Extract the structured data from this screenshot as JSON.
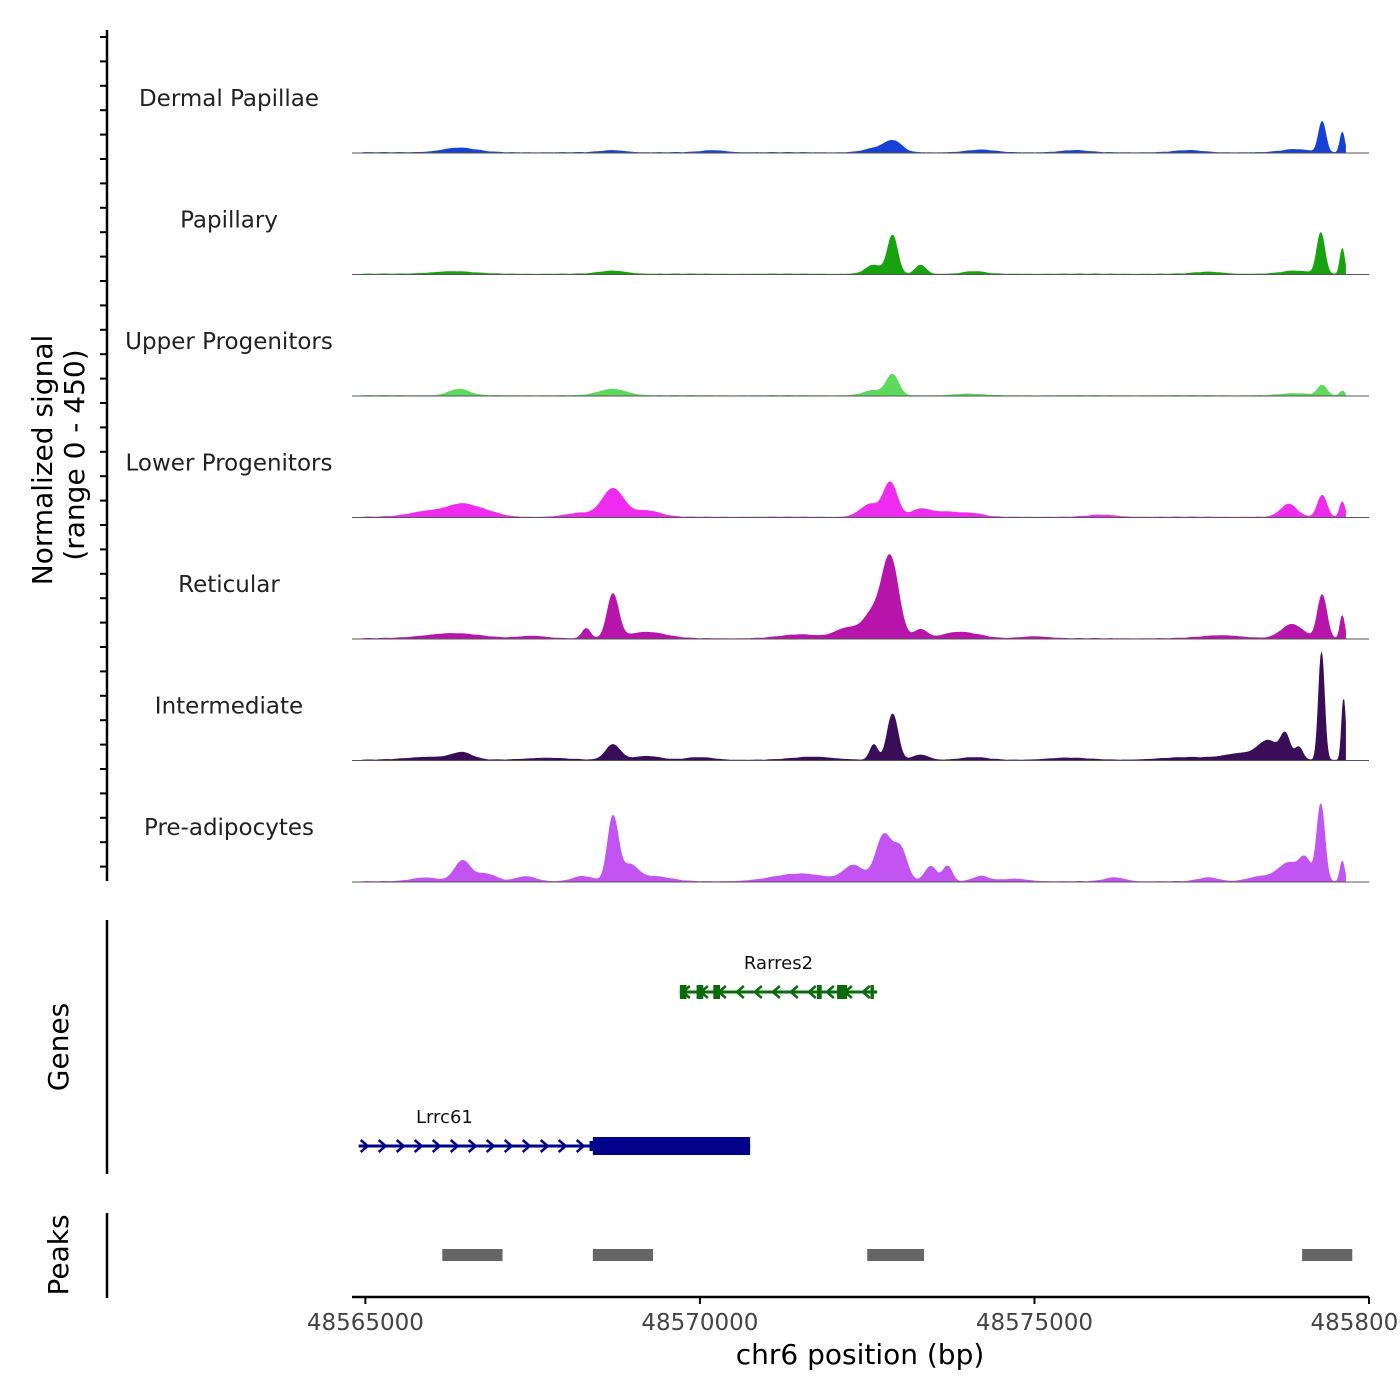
{
  "chart_data": {
    "type": "area",
    "title": "",
    "y_axis_label_line1": "Normalized signal",
    "y_axis_label_line2": "(range 0 - 450)",
    "ylim": [
      0,
      450
    ],
    "xlabel": "chr6 position (bp)",
    "xlim": [
      48564800,
      48580000
    ],
    "x_ticks": [
      48565000,
      48570000,
      48575000,
      48580000
    ],
    "x_tick_labels": [
      "48565000",
      "48570000",
      "48575000",
      "48580000"
    ],
    "tracks": [
      {
        "name": "Dermal Papillae",
        "color": "#1740d4",
        "peaks": [
          [
            48566400,
            18,
            250
          ],
          [
            48568700,
            8,
            180
          ],
          [
            48570200,
            8,
            180
          ],
          [
            48572700,
            20,
            200
          ],
          [
            48572900,
            35,
            120
          ],
          [
            48574200,
            10,
            200
          ],
          [
            48575600,
            8,
            200
          ],
          [
            48577300,
            8,
            200
          ],
          [
            48578900,
            12,
            200
          ],
          [
            48579300,
            120,
            55
          ],
          [
            48579600,
            80,
            35
          ]
        ]
      },
      {
        "name": "Papillary",
        "color": "#18a20f",
        "peaks": [
          [
            48566300,
            10,
            300
          ],
          [
            48568700,
            12,
            200
          ],
          [
            48572600,
            35,
            120
          ],
          [
            48572880,
            150,
            75
          ],
          [
            48573300,
            35,
            80
          ],
          [
            48574100,
            10,
            150
          ],
          [
            48577600,
            8,
            200
          ],
          [
            48578900,
            12,
            200
          ],
          [
            48579280,
            160,
            60
          ],
          [
            48579600,
            100,
            35
          ]
        ]
      },
      {
        "name": "Upper Progenitors",
        "color": "#5dd95d",
        "peaks": [
          [
            48566400,
            25,
            150
          ],
          [
            48568700,
            25,
            200
          ],
          [
            48572600,
            20,
            150
          ],
          [
            48572880,
            80,
            90
          ],
          [
            48574000,
            6,
            200
          ],
          [
            48578900,
            8,
            200
          ],
          [
            48579300,
            40,
            70
          ],
          [
            48579600,
            18,
            40
          ]
        ]
      },
      {
        "name": "Lower Progenitors",
        "color": "#ef2bef",
        "peaks": [
          [
            48566000,
            25,
            300
          ],
          [
            48566450,
            40,
            200
          ],
          [
            48566800,
            20,
            200
          ],
          [
            48568200,
            15,
            200
          ],
          [
            48568700,
            110,
            160
          ],
          [
            48569200,
            25,
            200
          ],
          [
            48572550,
            50,
            150
          ],
          [
            48572850,
            130,
            100
          ],
          [
            48573300,
            30,
            150
          ],
          [
            48573700,
            20,
            200
          ],
          [
            48574100,
            12,
            150
          ],
          [
            48576000,
            8,
            200
          ],
          [
            48578800,
            50,
            120
          ],
          [
            48579300,
            85,
            70
          ],
          [
            48579600,
            60,
            40
          ]
        ]
      },
      {
        "name": "Reticular",
        "color": "#b614ab",
        "peaks": [
          [
            48566300,
            20,
            400
          ],
          [
            48567500,
            10,
            200
          ],
          [
            48568300,
            40,
            60
          ],
          [
            48568700,
            170,
            85
          ],
          [
            48569200,
            25,
            280
          ],
          [
            48571500,
            15,
            300
          ],
          [
            48572200,
            40,
            180
          ],
          [
            48572600,
            100,
            150
          ],
          [
            48572850,
            300,
            120
          ],
          [
            48573300,
            35,
            100
          ],
          [
            48573800,
            20,
            200
          ],
          [
            48574100,
            12,
            200
          ],
          [
            48575000,
            8,
            200
          ],
          [
            48577800,
            12,
            300
          ],
          [
            48578850,
            55,
            160
          ],
          [
            48579300,
            170,
            70
          ],
          [
            48579600,
            90,
            35
          ]
        ]
      },
      {
        "name": "Intermediate",
        "color": "#3a0d59",
        "peaks": [
          [
            48566000,
            12,
            350
          ],
          [
            48566450,
            25,
            150
          ],
          [
            48567700,
            8,
            300
          ],
          [
            48568700,
            60,
            110
          ],
          [
            48569200,
            15,
            200
          ],
          [
            48570000,
            10,
            200
          ],
          [
            48571700,
            12,
            300
          ],
          [
            48572600,
            60,
            60
          ],
          [
            48572880,
            180,
            80
          ],
          [
            48573300,
            20,
            120
          ],
          [
            48574100,
            10,
            200
          ],
          [
            48575500,
            8,
            300
          ],
          [
            48577300,
            10,
            400
          ],
          [
            48578100,
            25,
            250
          ],
          [
            48578500,
            70,
            150
          ],
          [
            48578750,
            90,
            70
          ],
          [
            48578950,
            50,
            60
          ],
          [
            48579290,
            420,
            45
          ],
          [
            48579620,
            240,
            30
          ]
        ]
      },
      {
        "name": "Pre-adipocytes",
        "color": "#c254f2",
        "peaks": [
          [
            48565900,
            15,
            200
          ],
          [
            48566450,
            80,
            120
          ],
          [
            48566800,
            30,
            150
          ],
          [
            48567400,
            20,
            150
          ],
          [
            48568250,
            20,
            150
          ],
          [
            48568700,
            250,
            80
          ],
          [
            48568950,
            60,
            120
          ],
          [
            48569300,
            20,
            250
          ],
          [
            48571500,
            30,
            400
          ],
          [
            48572300,
            60,
            150
          ],
          [
            48572750,
            180,
            120
          ],
          [
            48573000,
            120,
            100
          ],
          [
            48573450,
            60,
            90
          ],
          [
            48573700,
            60,
            70
          ],
          [
            48574200,
            20,
            120
          ],
          [
            48574700,
            10,
            200
          ],
          [
            48576200,
            15,
            150
          ],
          [
            48577600,
            15,
            150
          ],
          [
            48578400,
            20,
            200
          ],
          [
            48578800,
            70,
            150
          ],
          [
            48579050,
            80,
            90
          ],
          [
            48579280,
            300,
            60
          ],
          [
            48579600,
            80,
            35
          ]
        ]
      }
    ],
    "genes": [
      {
        "name": "Rarres2",
        "strand": "-",
        "start": 48569700,
        "end": 48572650,
        "color": "#0a6b0a",
        "exons": [
          [
            48569700,
            48569800
          ],
          [
            48569950,
            48570050
          ],
          [
            48570200,
            48570300
          ],
          [
            48571750,
            48571820
          ],
          [
            48572050,
            48572200
          ],
          [
            48572550,
            48572600
          ]
        ]
      },
      {
        "name": "Lrrc61",
        "strand": "+",
        "start": 48564900,
        "end": 48570750,
        "color": "#00008b",
        "utr": [
          [
            48568350,
            48568450
          ]
        ],
        "exons": [
          [
            48568400,
            48570750
          ]
        ]
      }
    ],
    "genes_label": "Genes",
    "peaks_label": "Peaks",
    "peak_regions": [
      [
        48566150,
        48567050
      ],
      [
        48568400,
        48569300
      ],
      [
        48572500,
        48573350
      ],
      [
        48579000,
        48579750
      ]
    ],
    "peak_color": "#666666"
  }
}
